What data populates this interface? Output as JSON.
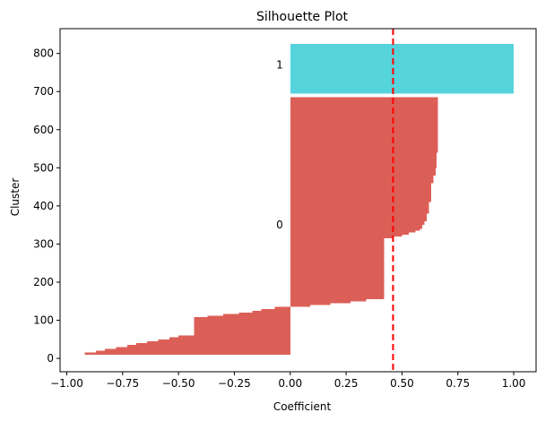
{
  "chart_data": {
    "type": "bar",
    "orientation": "horizontal",
    "title": "Silhouette Plot",
    "xlabel": "Coefficient",
    "ylabel": "Cluster",
    "xlim": [
      -1.03,
      1.1
    ],
    "ylim": [
      -35,
      865
    ],
    "x_ticks": [
      -1.0,
      -0.75,
      -0.5,
      -0.25,
      0.0,
      0.25,
      0.5,
      0.75,
      1.0
    ],
    "x_tick_labels": [
      "−1.00",
      "−0.75",
      "−0.50",
      "−0.25",
      "0.00",
      "0.25",
      "0.50",
      "0.75",
      "1.00"
    ],
    "y_ticks": [
      0,
      100,
      200,
      300,
      400,
      500,
      600,
      700,
      800
    ],
    "y_tick_labels": [
      "0",
      "100",
      "200",
      "300",
      "400",
      "500",
      "600",
      "700",
      "800"
    ],
    "average_silhouette": 0.46,
    "grid": false,
    "clusters": [
      {
        "label": "0",
        "label_y": 350,
        "color": "#dc5f57",
        "y_start": 10,
        "y_end": 685,
        "profile": [
          [
            10,
            -0.92
          ],
          [
            15,
            -0.87
          ],
          [
            20,
            -0.83
          ],
          [
            25,
            -0.78
          ],
          [
            30,
            -0.73
          ],
          [
            35,
            -0.69
          ],
          [
            40,
            -0.64
          ],
          [
            45,
            -0.59
          ],
          [
            50,
            -0.54
          ],
          [
            55,
            -0.5
          ],
          [
            60,
            -0.43
          ],
          [
            108,
            -0.37
          ],
          [
            112,
            -0.3
          ],
          [
            116,
            -0.23
          ],
          [
            120,
            -0.17
          ],
          [
            125,
            -0.13
          ],
          [
            130,
            -0.07
          ],
          [
            135,
            0.09
          ],
          [
            140,
            0.18
          ],
          [
            145,
            0.27
          ],
          [
            150,
            0.34
          ],
          [
            155,
            0.42
          ],
          [
            315,
            0.46
          ],
          [
            320,
            0.5
          ],
          [
            325,
            0.53
          ],
          [
            330,
            0.56
          ],
          [
            335,
            0.58
          ],
          [
            340,
            0.59
          ],
          [
            350,
            0.6
          ],
          [
            360,
            0.61
          ],
          [
            380,
            0.62
          ],
          [
            410,
            0.63
          ],
          [
            460,
            0.64
          ],
          [
            480,
            0.65
          ],
          [
            500,
            0.655
          ],
          [
            540,
            0.66
          ],
          [
            685,
            0.66
          ]
        ]
      },
      {
        "label": "1",
        "label_y": 770,
        "color": "#56d4dc",
        "y_start": 695,
        "y_end": 825,
        "profile": [
          [
            695,
            1.0
          ],
          [
            825,
            1.0
          ]
        ]
      }
    ]
  }
}
